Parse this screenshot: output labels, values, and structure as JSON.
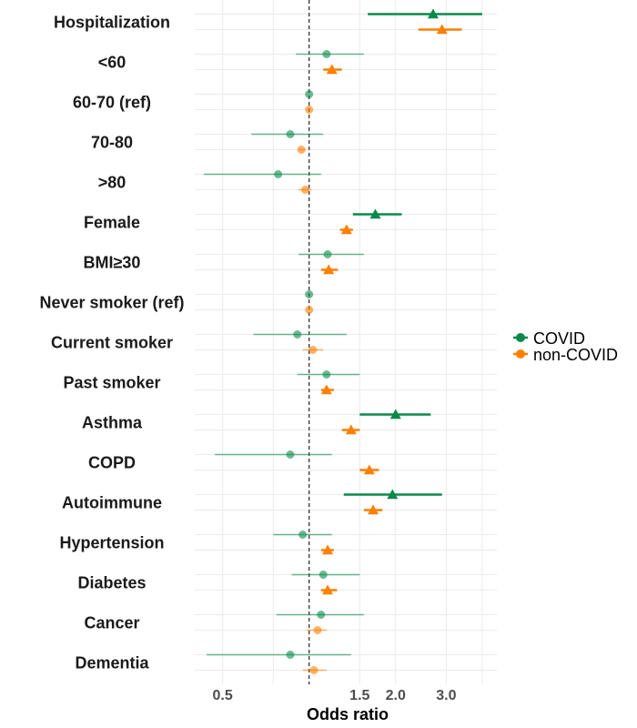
{
  "chart_data": {
    "type": "forest",
    "xlabel": "Odds ratio",
    "x_scale": "log",
    "xlim": [
      0.4,
      4.5
    ],
    "x_ticks": [
      0.5,
      1.5,
      2.0,
      3.0
    ],
    "x_tick_labels": [
      "0.5",
      "1.5",
      "2.0",
      "3.0"
    ],
    "reference_line": 1.0,
    "grid": true,
    "legend_position": "right",
    "categories": [
      "Hospitalization",
      "<60",
      "60-70 (ref)",
      "70-80",
      ">80",
      "Female",
      "BMI≥30",
      "Never smoker (ref)",
      "Current smoker",
      "Past smoker",
      "Asthma",
      "COPD",
      "Autoimmune",
      "Hypertension",
      "Diabetes",
      "Cancer",
      "Dementia"
    ],
    "series": [
      {
        "name": "COVID",
        "color": "#0a8a4a",
        "or": [
          2.7,
          1.15,
          1.0,
          0.86,
          0.78,
          1.7,
          1.16,
          1.0,
          0.91,
          1.15,
          2.0,
          0.86,
          1.95,
          0.95,
          1.12,
          1.1,
          0.86
        ],
        "lo": [
          1.6,
          0.9,
          1.0,
          0.63,
          0.43,
          1.42,
          0.92,
          1.0,
          0.64,
          0.91,
          1.5,
          0.47,
          1.32,
          0.75,
          0.87,
          0.77,
          0.44
        ],
        "hi": [
          4.0,
          1.55,
          1.0,
          1.12,
          1.1,
          2.1,
          1.55,
          1.0,
          1.35,
          1.5,
          2.65,
          1.2,
          2.9,
          1.2,
          1.5,
          1.55,
          1.4
        ],
        "significant": [
          true,
          false,
          false,
          false,
          false,
          true,
          false,
          false,
          false,
          false,
          true,
          false,
          true,
          false,
          false,
          false,
          false
        ]
      },
      {
        "name": "non-COVID",
        "color": "#ff7f00",
        "or": [
          2.9,
          1.2,
          1.0,
          0.94,
          0.97,
          1.35,
          1.17,
          1.0,
          1.03,
          1.15,
          1.4,
          1.62,
          1.67,
          1.16,
          1.16,
          1.07,
          1.04
        ],
        "lo": [
          2.4,
          1.12,
          1.0,
          0.92,
          0.92,
          1.28,
          1.1,
          1.0,
          0.95,
          1.1,
          1.3,
          1.5,
          1.55,
          1.1,
          1.1,
          0.98,
          0.95
        ],
        "hi": [
          3.4,
          1.3,
          1.0,
          0.97,
          1.02,
          1.42,
          1.26,
          1.0,
          1.12,
          1.22,
          1.5,
          1.75,
          1.8,
          1.22,
          1.25,
          1.15,
          1.15
        ],
        "significant": [
          true,
          true,
          false,
          false,
          false,
          true,
          true,
          false,
          false,
          true,
          true,
          true,
          true,
          true,
          true,
          false,
          false
        ]
      }
    ]
  }
}
